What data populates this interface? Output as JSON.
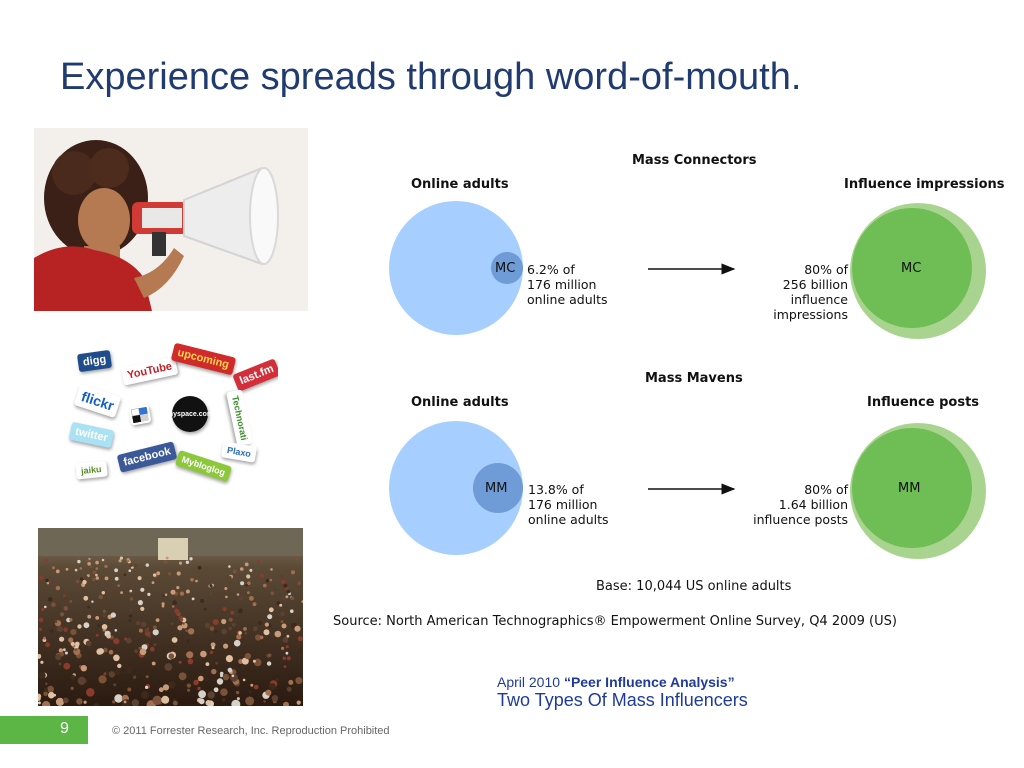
{
  "slide": {
    "title": "Experience spreads through word-of-mouth.",
    "page_number": "9",
    "copyright": "© 2011 Forrester Research, Inc. Reproduction Prohibited"
  },
  "logos": [
    "digg",
    "YouTube",
    "upcoming",
    "last.fm",
    "flickr",
    "myspace.com",
    "Technorati",
    "twitter",
    "facebook",
    "jaiku",
    "Mybloglog",
    "Plaxo"
  ],
  "diagram": {
    "colors": {
      "light_blue": "#a6cfff",
      "mid_blue": "#6f9bd6",
      "green": "#6fbd55",
      "pale_green": "#a9d48f"
    },
    "sections": [
      {
        "heading": "Mass Connectors",
        "left_label": "Online adults",
        "right_label": "Influence impressions",
        "inner_code": "MC",
        "left_stat": [
          "6.2% of",
          "176 million",
          "online adults"
        ],
        "right_stat": [
          "80% of",
          "256 billion",
          "influence",
          "impressions"
        ],
        "share_of_adults_pct": 6.2,
        "share_of_output_pct": 80
      },
      {
        "heading": "Mass Mavens",
        "left_label": "Online adults",
        "right_label": "Influence posts",
        "inner_code": "MM",
        "left_stat": [
          "13.8% of",
          "176 million",
          "online adults"
        ],
        "right_stat": [
          "80% of",
          "1.64 billion",
          "influence posts"
        ],
        "share_of_adults_pct": 13.8,
        "share_of_output_pct": 80
      }
    ],
    "base": "Base: 10,044 US online adults",
    "source": "Source: North American Technographics® Empowerment Online Survey, Q4 2009 (US)"
  },
  "caption": {
    "date": "April 2010",
    "report": "“Peer Influence Analysis”",
    "subtitle": "Two Types Of Mass Influencers"
  }
}
